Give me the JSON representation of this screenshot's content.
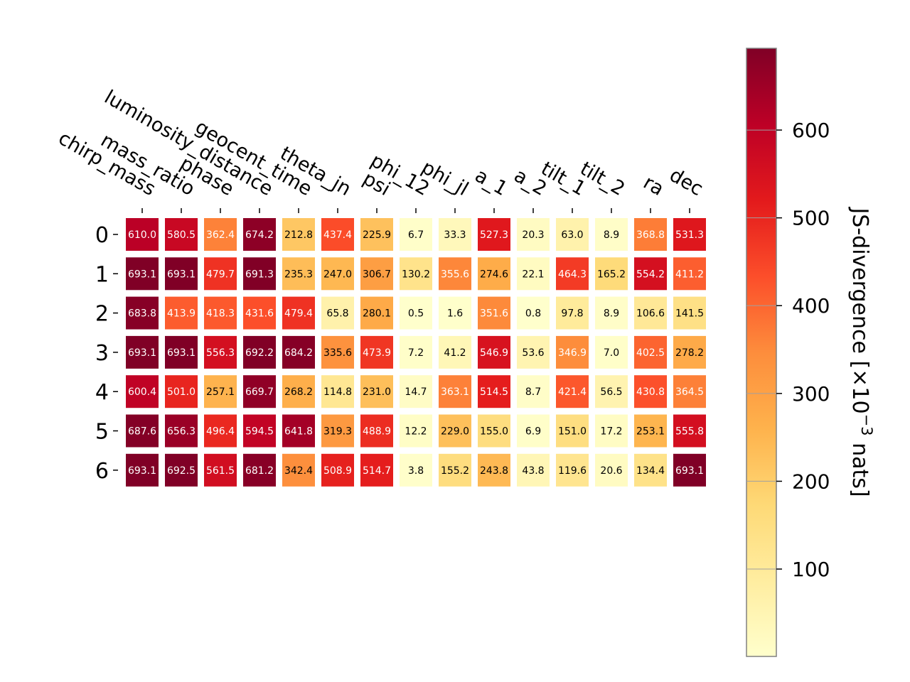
{
  "chart_data": {
    "type": "heatmap",
    "title": "",
    "xlabel": "",
    "ylabel": "",
    "rows": [
      "0",
      "1",
      "2",
      "3",
      "4",
      "5",
      "6"
    ],
    "columns": [
      "chirp_mass",
      "mass_ratio",
      "phase",
      "luminosity_distance",
      "geocent_time",
      "theta_jn",
      "psi",
      "phi_12",
      "phi_jl",
      "a_1",
      "a_2",
      "tilt_1",
      "tilt_2",
      "ra",
      "dec"
    ],
    "values": [
      [
        610.0,
        580.5,
        362.4,
        674.2,
        212.8,
        437.4,
        225.9,
        6.7,
        33.3,
        527.3,
        20.3,
        63.0,
        8.9,
        368.8,
        531.3
      ],
      [
        693.1,
        693.1,
        479.7,
        691.3,
        235.3,
        247.0,
        306.7,
        130.2,
        355.6,
        274.6,
        22.1,
        464.3,
        165.2,
        554.2,
        411.2
      ],
      [
        683.8,
        413.9,
        418.3,
        431.6,
        479.4,
        65.8,
        280.1,
        0.5,
        1.6,
        351.6,
        0.8,
        97.8,
        8.9,
        106.6,
        141.5
      ],
      [
        693.1,
        693.1,
        556.3,
        692.2,
        684.2,
        335.6,
        473.9,
        7.2,
        41.2,
        546.9,
        53.6,
        346.9,
        7.0,
        402.5,
        278.2
      ],
      [
        600.4,
        501.0,
        257.1,
        669.7,
        268.2,
        114.8,
        231.0,
        14.7,
        363.1,
        514.5,
        8.7,
        421.4,
        56.5,
        430.8,
        364.5
      ],
      [
        687.6,
        656.3,
        496.4,
        594.5,
        641.8,
        319.3,
        488.9,
        12.2,
        229.0,
        155.0,
        6.9,
        151.0,
        17.2,
        253.1,
        555.8
      ],
      [
        693.1,
        692.5,
        561.5,
        681.2,
        342.4,
        508.9,
        514.7,
        3.8,
        155.2,
        243.8,
        43.8,
        119.6,
        20.6,
        134.4,
        693.1
      ]
    ],
    "colorbar": {
      "label": "JS-divergence [×10",
      "label_exponent": "−3",
      "label_suffix": " nats]",
      "ticks": [
        "100",
        "200",
        "300",
        "400",
        "500",
        "600"
      ],
      "tick_values": [
        100,
        200,
        300,
        400,
        500,
        600
      ],
      "range": [
        0.5,
        693.1
      ],
      "colormap": "YlOrRd"
    },
    "colormap_stops": [
      "#ffffcc",
      "#ffeda0",
      "#fed976",
      "#feb24c",
      "#fd8d3c",
      "#fc4e2a",
      "#e31a1c",
      "#bd0026",
      "#800026"
    ],
    "text_threshold": 346.5
  }
}
